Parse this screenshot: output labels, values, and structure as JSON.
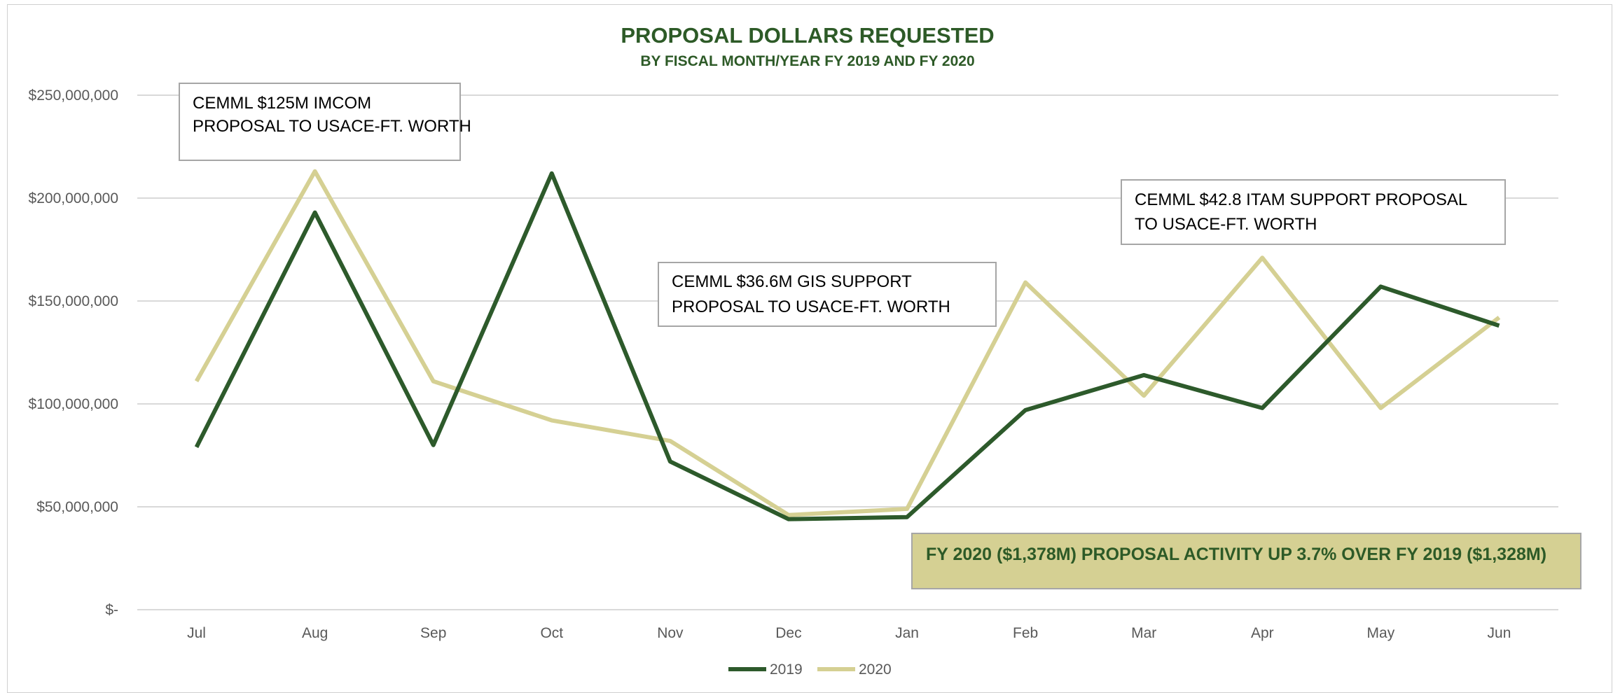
{
  "chart_data": {
    "type": "line",
    "title": "PROPOSAL DOLLARS REQUESTED",
    "subtitle": "BY FISCAL MONTH/YEAR FY 2019 AND FY 2020",
    "categories": [
      "Jul",
      "Aug",
      "Sep",
      "Oct",
      "Nov",
      "Dec",
      "Jan",
      "Feb",
      "Mar",
      "Apr",
      "May",
      "Jun"
    ],
    "y_ticks": [
      "$-",
      "$50,000,000",
      "$100,000,000",
      "$150,000,000",
      "$200,000,000",
      "$250,000,000"
    ],
    "ylim": [
      0,
      250000000
    ],
    "grid": true,
    "legend_position": "bottom",
    "series": [
      {
        "name": "2019",
        "color": "#2d5a2b",
        "values": [
          79000000,
          193000000,
          80000000,
          212000000,
          72000000,
          44000000,
          45000000,
          97000000,
          114000000,
          98000000,
          157000000,
          138000000
        ]
      },
      {
        "name": "2020",
        "color": "#d5d093",
        "values": [
          111000000,
          213000000,
          111000000,
          92000000,
          82000000,
          46000000,
          49000000,
          159000000,
          104000000,
          171000000,
          98000000,
          142000000
        ]
      }
    ],
    "annotations": [
      {
        "line1": "CEMML $125M IMCOM",
        "line2": "PROPOSAL TO USACE-FT.  WORTH"
      },
      {
        "line1": "CEMML $36.6M GIS  SUPPORT",
        "line2": "PROPOSAL TO USACE-FT. WORTH"
      },
      {
        "line1": "CEMML $42.8 ITAM SUPPORT PROPOSAL",
        "line2": "TO USACE-FT. WORTH"
      }
    ],
    "highlight": "FY 2020 ($1,378M) PROPOSAL ACTIVITY UP 3.7% OVER FY 2019 ($1,328M)"
  }
}
